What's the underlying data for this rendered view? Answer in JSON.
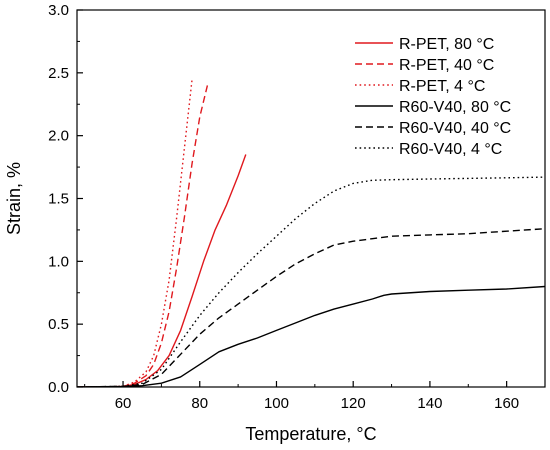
{
  "chart_data": {
    "type": "line",
    "title": "",
    "xlabel": "Temperature, °C",
    "ylabel": "Strain, %",
    "xlim": [
      48,
      170
    ],
    "ylim": [
      0,
      3.0
    ],
    "x_ticks": [
      {
        "value": 60,
        "label": "60"
      },
      {
        "value": 80,
        "label": "80"
      },
      {
        "value": 100,
        "label": "100"
      },
      {
        "value": 120,
        "label": "120"
      },
      {
        "value": 140,
        "label": "140"
      },
      {
        "value": 160,
        "label": "160"
      }
    ],
    "y_ticks": [
      {
        "value": 0.0,
        "label": "0.0"
      },
      {
        "value": 0.5,
        "label": "0.5"
      },
      {
        "value": 1.0,
        "label": "1.0"
      },
      {
        "value": 1.5,
        "label": "1.5"
      },
      {
        "value": 2.0,
        "label": "2.0"
      },
      {
        "value": 2.5,
        "label": "2.5"
      },
      {
        "value": 3.0,
        "label": "3.0"
      }
    ],
    "grid": false,
    "legend": "top-right",
    "series": [
      {
        "name": "R-PET, 80 °C",
        "color": "#e0191e",
        "dash": "solid",
        "x": [
          48,
          55,
          60,
          63,
          66,
          69,
          72,
          75,
          78,
          81,
          84,
          87,
          90,
          92
        ],
        "y": [
          0,
          0,
          0.005,
          0.02,
          0.06,
          0.13,
          0.25,
          0.45,
          0.72,
          1.0,
          1.25,
          1.45,
          1.68,
          1.85
        ]
      },
      {
        "name": "R-PET, 40 °C",
        "color": "#e0191e",
        "dash": "dashed",
        "x": [
          48,
          55,
          60,
          63,
          66,
          68,
          70,
          72,
          74,
          76,
          78,
          80,
          82
        ],
        "y": [
          0,
          0,
          0.005,
          0.03,
          0.09,
          0.18,
          0.35,
          0.6,
          0.95,
          1.35,
          1.78,
          2.15,
          2.4
        ]
      },
      {
        "name": "R-PET, 4 °C",
        "color": "#e0191e",
        "dash": "dotted",
        "x": [
          48,
          55,
          60,
          63,
          66,
          68,
          70,
          72,
          74,
          76,
          78
        ],
        "y": [
          0,
          0,
          0.005,
          0.04,
          0.12,
          0.25,
          0.5,
          0.85,
          1.35,
          1.9,
          2.45
        ]
      },
      {
        "name": "R60-V40, 80 °C",
        "color": "#000000",
        "dash": "solid",
        "x": [
          48,
          60,
          65,
          70,
          75,
          80,
          85,
          90,
          95,
          100,
          105,
          110,
          115,
          120,
          125,
          128,
          130,
          140,
          150,
          160,
          170
        ],
        "y": [
          0,
          0.005,
          0.01,
          0.03,
          0.08,
          0.18,
          0.28,
          0.34,
          0.39,
          0.45,
          0.51,
          0.57,
          0.62,
          0.66,
          0.7,
          0.73,
          0.74,
          0.76,
          0.77,
          0.78,
          0.8
        ]
      },
      {
        "name": "R60-V40, 40 °C",
        "color": "#000000",
        "dash": "dashed",
        "x": [
          48,
          60,
          65,
          70,
          75,
          80,
          85,
          90,
          95,
          100,
          105,
          110,
          115,
          120,
          125,
          130,
          140,
          150,
          160,
          170
        ],
        "y": [
          0,
          0.005,
          0.02,
          0.1,
          0.26,
          0.42,
          0.55,
          0.66,
          0.77,
          0.88,
          0.98,
          1.06,
          1.13,
          1.16,
          1.18,
          1.2,
          1.21,
          1.22,
          1.24,
          1.26
        ]
      },
      {
        "name": "R60-V40, 4 °C",
        "color": "#000000",
        "dash": "dotted",
        "x": [
          48,
          60,
          65,
          70,
          75,
          80,
          85,
          90,
          95,
          100,
          105,
          110,
          115,
          120,
          125,
          130,
          140,
          150,
          160,
          170
        ],
        "y": [
          0,
          0.005,
          0.03,
          0.14,
          0.36,
          0.57,
          0.75,
          0.91,
          1.06,
          1.2,
          1.34,
          1.46,
          1.56,
          1.62,
          1.645,
          1.65,
          1.655,
          1.66,
          1.665,
          1.67
        ]
      }
    ]
  }
}
